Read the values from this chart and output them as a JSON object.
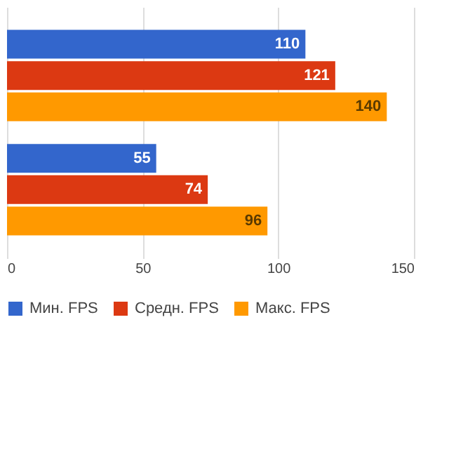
{
  "chart_data": {
    "type": "bar",
    "orientation": "horizontal",
    "categories": [
      null,
      null
    ],
    "series": [
      {
        "name": "Мин. FPS",
        "color": "#3366cc",
        "values": [
          110,
          55
        ]
      },
      {
        "name": "Средн. FPS",
        "color": "#dc3912",
        "values": [
          121,
          74
        ]
      },
      {
        "name": "Макс. FPS",
        "color": "#ff9900",
        "values": [
          140,
          96
        ]
      }
    ],
    "xlim": [
      0,
      150
    ],
    "xticks": [
      0,
      50,
      100,
      150
    ],
    "grid": "x",
    "legend": "bottom",
    "data_labels": true
  }
}
